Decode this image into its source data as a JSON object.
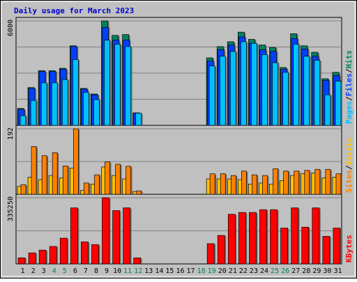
{
  "title": "Daily usage for March 2023",
  "colors": {
    "frame": "#c0c0c0",
    "panel": "#c0c0c0",
    "title": "#0000cc",
    "hits": "#008060",
    "files": "#0040ff",
    "pages": "#00c0ff",
    "visits": "#ffc000",
    "sites": "#ff8000",
    "kbytes": "#ff0000",
    "weekend_label": "#008060"
  },
  "chart_data": [
    {
      "type": "bar",
      "panel": "hits-files-pages",
      "categories": [
        "1",
        "2",
        "3",
        "4",
        "5",
        "6",
        "7",
        "8",
        "9",
        "10",
        "11",
        "12",
        "13",
        "14",
        "15",
        "16",
        "17",
        "18",
        "19",
        "20",
        "21",
        "22",
        "23",
        "24",
        "25",
        "26",
        "27",
        "28",
        "29",
        "30",
        "31"
      ],
      "yaxis_max_label": "6000",
      "ylim": [
        0,
        6500
      ],
      "series": [
        {
          "name": "Hits",
          "values": [
            1050,
            2350,
            3400,
            3400,
            3550,
            4950,
            2300,
            1950,
            6500,
            5600,
            5650,
            780,
            0,
            0,
            0,
            0,
            0,
            0,
            4200,
            4900,
            5200,
            5800,
            5350,
            5000,
            4850,
            3600,
            5700,
            4950,
            4550,
            2900,
            3300
          ]
        },
        {
          "name": "Files",
          "values": [
            1000,
            2300,
            3350,
            3350,
            3500,
            4900,
            2250,
            1900,
            6100,
            5300,
            5300,
            760,
            0,
            0,
            0,
            0,
            0,
            0,
            4000,
            4700,
            5000,
            5500,
            5100,
            4700,
            4600,
            3500,
            5400,
            4750,
            4300,
            2800,
            3100
          ]
        },
        {
          "name": "Pages",
          "values": [
            600,
            1550,
            2650,
            2650,
            2850,
            4100,
            2050,
            1600,
            5300,
            5050,
            4900,
            760,
            0,
            0,
            0,
            0,
            0,
            0,
            3700,
            4300,
            4600,
            5200,
            5100,
            4400,
            3900,
            3300,
            5050,
            4300,
            4050,
            1900,
            2750
          ]
        }
      ],
      "legend": [
        "Pages",
        "/",
        "Files",
        "/",
        "Hits"
      ]
    },
    {
      "type": "bar",
      "panel": "visits-sites",
      "categories": [
        "1",
        "2",
        "3",
        "4",
        "5",
        "6",
        "7",
        "8",
        "9",
        "10",
        "11",
        "12",
        "13",
        "14",
        "15",
        "16",
        "17",
        "18",
        "19",
        "20",
        "21",
        "22",
        "23",
        "24",
        "25",
        "26",
        "27",
        "28",
        "29",
        "30",
        "31"
      ],
      "yaxis_max_label": "192",
      "ylim": [
        0,
        192
      ],
      "series": [
        {
          "name": "Visits",
          "values": [
            23,
            50,
            43,
            55,
            48,
            77,
            11,
            30,
            80,
            55,
            45,
            8,
            0,
            0,
            0,
            0,
            0,
            0,
            45,
            45,
            45,
            43,
            30,
            33,
            30,
            40,
            55,
            60,
            62,
            48,
            50
          ]
        },
        {
          "name": "Sites",
          "values": [
            28,
            140,
            113,
            122,
            83,
            192,
            33,
            57,
            95,
            88,
            82,
            10,
            0,
            0,
            0,
            0,
            0,
            0,
            60,
            60,
            55,
            68,
            57,
            55,
            75,
            68,
            68,
            70,
            73,
            73,
            60
          ]
        }
      ],
      "legend": [
        "Sites",
        "/",
        "Visits"
      ]
    },
    {
      "type": "bar",
      "panel": "kbytes",
      "categories": [
        "1",
        "2",
        "3",
        "4",
        "5",
        "6",
        "7",
        "8",
        "9",
        "10",
        "11",
        "12",
        "13",
        "14",
        "15",
        "16",
        "17",
        "18",
        "19",
        "20",
        "21",
        "22",
        "23",
        "24",
        "25",
        "26",
        "27",
        "28",
        "29",
        "30",
        "31"
      ],
      "yaxis_max_label": "335250",
      "ylim": [
        0,
        360000
      ],
      "series": [
        {
          "name": "KBytes",
          "values": [
            33000,
            60000,
            75000,
            95000,
            140000,
            305000,
            120000,
            105000,
            360000,
            290000,
            305000,
            33000,
            0,
            0,
            0,
            0,
            0,
            0,
            110000,
            155000,
            270000,
            280000,
            280000,
            295000,
            295000,
            195000,
            305000,
            200000,
            305000,
            150000,
            195000
          ]
        }
      ],
      "legend": [
        "KBytes"
      ]
    }
  ],
  "weekend_days": [
    4,
    5,
    11,
    12,
    18,
    19,
    25,
    26
  ]
}
